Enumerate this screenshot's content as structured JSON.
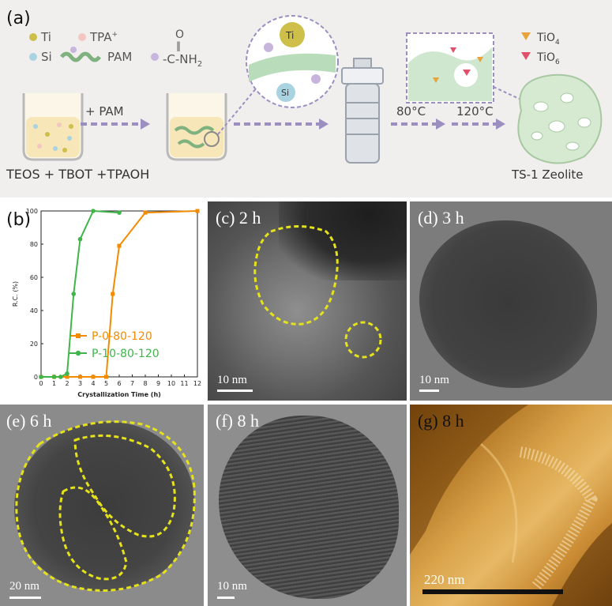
{
  "panel_a": {
    "label": "(a)",
    "legend": {
      "ti": "Ti",
      "tpa": "TPA",
      "tpa_sup": "+",
      "si": "Si",
      "pam": "PAM",
      "amide_o": "O",
      "amide_group": "-C-NH",
      "amide_sub": "2",
      "tio4": "TiO",
      "tio4_sub": "4",
      "tio6": "TiO",
      "tio6_sub": "6"
    },
    "plus_pam": "+ PAM",
    "zoom_ti": "Ti",
    "zoom_si": "Si",
    "temp1": "80°C",
    "temp2": "120°C",
    "reagents": "TEOS + TBOT +TPAOH",
    "product": "TS-1 Zeolite",
    "colors": {
      "ti": "#cdbf4a",
      "si": "#a9d3e0",
      "tpa": "#f4c6c2",
      "pam": "#7fb27f",
      "arrow": "#9a8fc0",
      "tio4": "#e8a33a",
      "tio6": "#e0506a"
    }
  },
  "panel_b": {
    "label": "(b)",
    "chart_data": {
      "type": "line",
      "xlabel": "Crystallization Time (h)",
      "ylabel": "R.C. (%)",
      "xlim": [
        0,
        12
      ],
      "ylim": [
        0,
        100
      ],
      "xticks": [
        0,
        1,
        2,
        3,
        4,
        5,
        6,
        7,
        8,
        9,
        10,
        11,
        12
      ],
      "yticks": [
        0,
        20,
        40,
        60,
        80,
        100
      ],
      "legend_position": "bottom-right",
      "series": [
        {
          "name": "P-0-80-120",
          "color": "#f28b00",
          "marker": "square",
          "x": [
            0,
            1,
            2,
            3,
            4,
            5,
            5.5,
            6,
            8,
            12
          ],
          "y": [
            0,
            0,
            0,
            0,
            0,
            0,
            50,
            79,
            99,
            100
          ]
        },
        {
          "name": "P-10-80-120",
          "color": "#3fb54a",
          "marker": "circle",
          "x": [
            0,
            1,
            1.5,
            2,
            2.5,
            3,
            4,
            6
          ],
          "y": [
            0,
            0,
            0,
            2,
            50,
            83,
            100,
            99
          ]
        }
      ]
    }
  },
  "panel_c": {
    "label": "(c)",
    "time": "2 h",
    "scale": "10 nm"
  },
  "panel_d": {
    "label": "(d)",
    "time": "3 h",
    "scale": "10 nm"
  },
  "panel_e": {
    "label": "(e)",
    "time": "6 h",
    "scale": "20 nm"
  },
  "panel_f": {
    "label": "(f)",
    "time": "8 h",
    "scale": "10 nm"
  },
  "panel_g": {
    "label": "(g)",
    "time": "8 h",
    "scale": "220 nm"
  },
  "colors": {
    "highlight": "#e6e21a"
  }
}
